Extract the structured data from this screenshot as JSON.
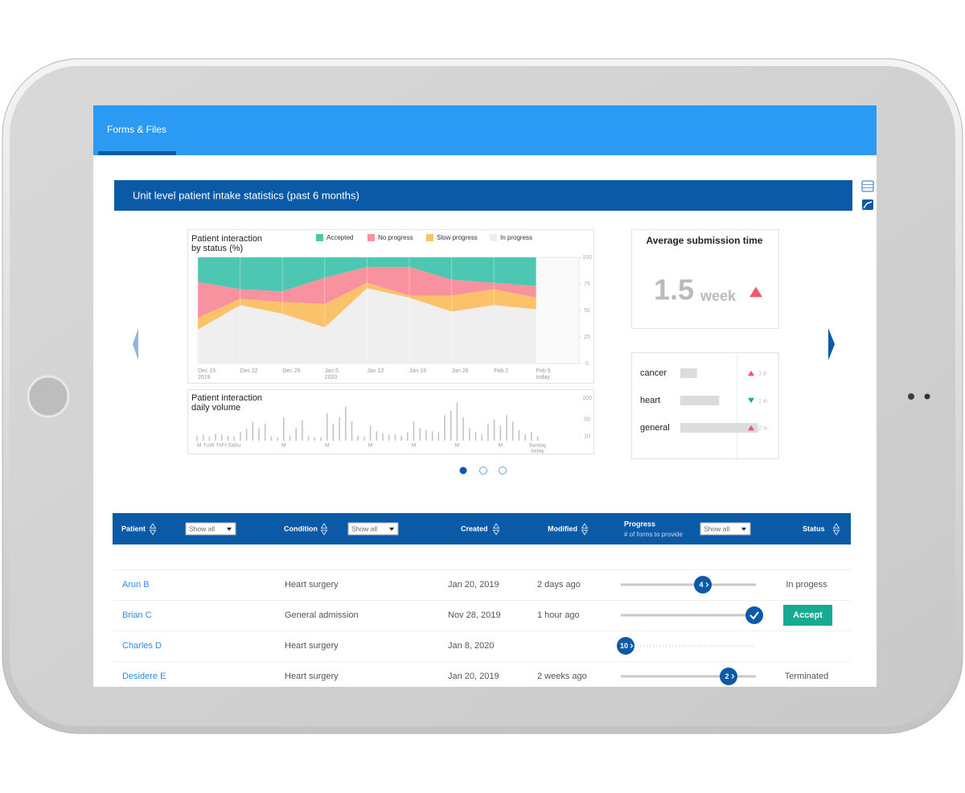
{
  "tab": "Forms & Files",
  "section_title": "Unit level patient intake statistics (past 6 months)",
  "chart_data": [
    {
      "type": "area",
      "stacked": true,
      "title_lines": [
        "Patient interaction",
        "by status (%)"
      ],
      "categories": [
        "Dec 15",
        "Dec 22",
        "Dec 29",
        "Jan 5",
        "Jan 12",
        "Jan 19",
        "Jan 26",
        "Feb 2",
        "Feb 9"
      ],
      "category_sublabels": [
        "2019",
        null,
        null,
        "2020",
        null,
        null,
        null,
        null,
        "today"
      ],
      "series": [
        {
          "name": "Accepted",
          "color": "#4dc7b1",
          "values": [
            23,
            30,
            32,
            19,
            9,
            9,
            21,
            24,
            27
          ]
        },
        {
          "name": "No progress",
          "color": "#f7929e",
          "values": [
            34,
            9,
            10,
            25,
            15,
            27,
            15,
            6,
            11
          ]
        },
        {
          "name": "Slow progress",
          "color": "#fcc269",
          "values": [
            11,
            6,
            11,
            22,
            5,
            2,
            15,
            15,
            11
          ]
        },
        {
          "name": "In progress",
          "color": "#efefef",
          "values": [
            32,
            55,
            47,
            34,
            71,
            62,
            49,
            55,
            51
          ]
        }
      ],
      "ylim": [
        0,
        100
      ],
      "yticks": [
        0,
        25,
        50,
        75,
        100
      ],
      "grid": "x",
      "legend": "top"
    },
    {
      "type": "bar",
      "title_lines": [
        "Patient interaction",
        "daily volume"
      ],
      "categories": [
        "M",
        "Tu",
        "W",
        "Th",
        "Fr",
        "Sa",
        "Su",
        null,
        null,
        null,
        null,
        null,
        null,
        null,
        "M",
        null,
        null,
        null,
        null,
        null,
        null,
        "M",
        null,
        null,
        null,
        null,
        null,
        null,
        "M",
        null,
        null,
        null,
        null,
        null,
        null,
        "M",
        null,
        null,
        null,
        null,
        null,
        null,
        "M",
        null,
        null,
        null,
        null,
        null,
        null,
        "M",
        null,
        null,
        null,
        null,
        null,
        "Sunday"
      ],
      "category_sublabels": [
        null,
        null,
        null,
        null,
        null,
        null,
        null,
        null,
        null,
        null,
        null,
        null,
        null,
        null,
        null,
        null,
        null,
        null,
        null,
        null,
        null,
        null,
        null,
        null,
        null,
        null,
        null,
        null,
        null,
        null,
        null,
        null,
        null,
        null,
        null,
        null,
        null,
        null,
        null,
        null,
        null,
        null,
        null,
        null,
        null,
        null,
        null,
        null,
        null,
        null,
        null,
        null,
        null,
        null,
        null,
        "today"
      ],
      "values": [
        12,
        14,
        10,
        16,
        14,
        12,
        10,
        20,
        28,
        45,
        30,
        40,
        10,
        8,
        55,
        12,
        30,
        48,
        10,
        8,
        8,
        65,
        40,
        55,
        80,
        45,
        12,
        10,
        35,
        22,
        18,
        14,
        15,
        12,
        20,
        45,
        30,
        25,
        22,
        20,
        60,
        70,
        90,
        55,
        30,
        20,
        15,
        40,
        50,
        35,
        60,
        45,
        25,
        15,
        20,
        10
      ],
      "color": "#c4c4c4",
      "ylim": [
        0,
        100
      ],
      "yticks": [
        10,
        50,
        100
      ]
    },
    {
      "type": "kpi",
      "title": "Average submission time",
      "value": 1.5,
      "unit": "week",
      "trend": "up",
      "trend_color": "#f0566a"
    },
    {
      "type": "hbar",
      "categories": [
        "cancer",
        "heart",
        "general"
      ],
      "values": [
        3,
        7,
        14
      ],
      "value_labels": [
        "3 d",
        "1 w",
        "2 w"
      ],
      "trends": [
        "up",
        "down",
        "up"
      ],
      "trend_colors": {
        "up": "#f0566a",
        "down": "#1ab394"
      },
      "color": "#dcdcdc"
    }
  ],
  "table": {
    "headers": {
      "patient": "Patient",
      "condition": "Condition",
      "created": "Created",
      "modified": "Modified",
      "progress": "Progress",
      "progress_sub": "# of forms to provide",
      "status": "Status"
    },
    "filter": "Show all",
    "rows": [
      {
        "patient": "Arun B",
        "condition": "Heart surgery",
        "created": "Jan 20, 2019",
        "modified": "2 days ago",
        "progress": 4,
        "status": "In progess"
      },
      {
        "patient": "Brian C",
        "condition": "General admission",
        "created": "Nov 28, 2019",
        "modified": "1 hour ago",
        "progress": null,
        "status": "Accept"
      },
      {
        "patient": "Charles D",
        "condition": "Heart surgery",
        "created": "Jan 8, 2020",
        "modified": null,
        "progress": 10,
        "status": null
      },
      {
        "patient": "Desidere E",
        "condition": "Heart surgery",
        "created": "Jan 20, 2019",
        "modified": "2 weeks ago",
        "progress": 2,
        "status": "Terminated"
      }
    ]
  }
}
